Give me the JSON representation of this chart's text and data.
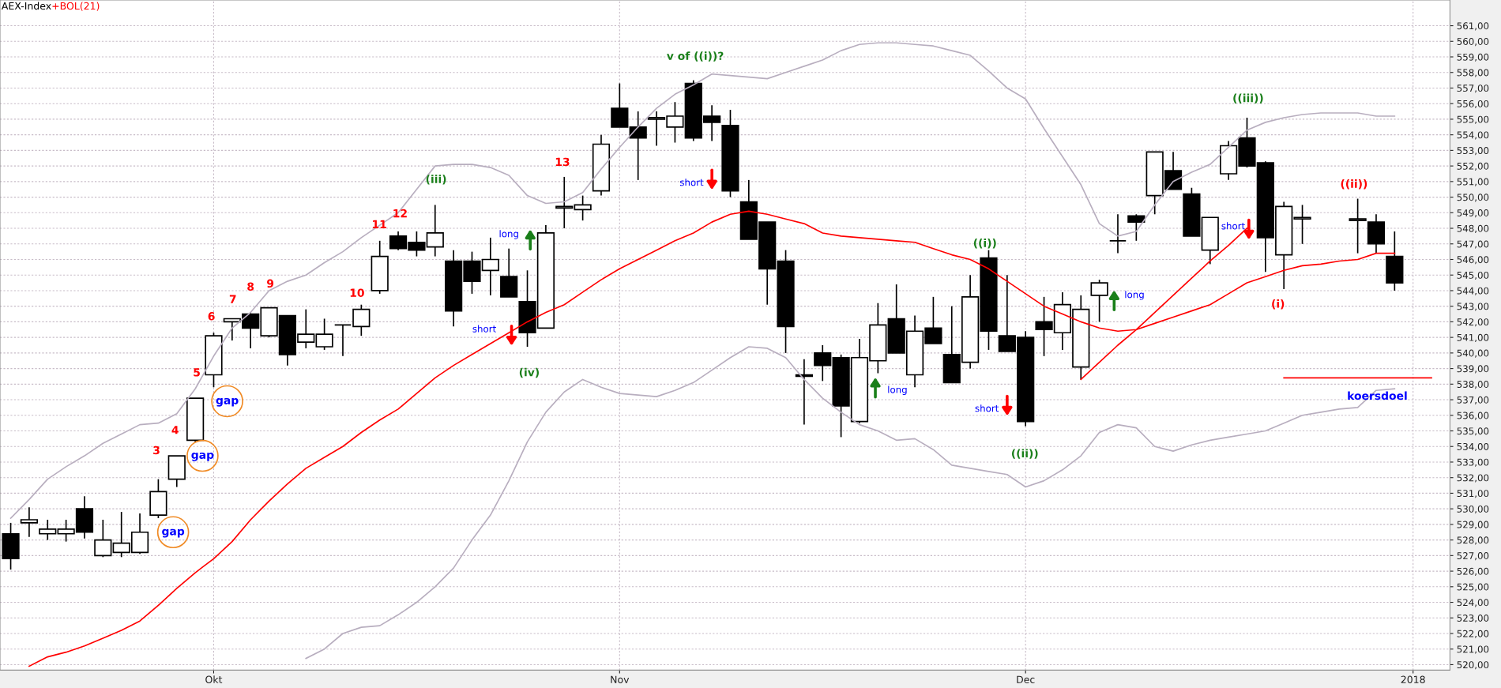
{
  "chart_data": {
    "type": "candlestick",
    "title": "AEX-Index",
    "legend": "top left",
    "grid": true,
    "categories": [
      null,
      null,
      null,
      null,
      null,
      null,
      null,
      null,
      null,
      null,
      null,
      "Okt",
      null,
      null,
      null,
      null,
      null,
      null,
      null,
      null,
      null,
      null,
      null,
      null,
      null,
      null,
      null,
      null,
      null,
      null,
      null,
      null,
      null,
      "Nov",
      null,
      null,
      null,
      null,
      null,
      null,
      null,
      null,
      null,
      null,
      null,
      null,
      null,
      null,
      null,
      null,
      null,
      null,
      null,
      null,
      null,
      "Dec",
      null,
      null,
      null,
      null,
      null,
      null,
      null,
      null,
      null,
      null,
      null,
      null,
      null,
      null,
      null,
      null,
      null,
      null,
      null,
      null,
      "2018",
      null
    ],
    "ohlc": [
      [
        528.4,
        529.1,
        526.1,
        526.8
      ],
      [
        529.1,
        530.1,
        528.2,
        529.3
      ],
      [
        528.4,
        529.3,
        528.0,
        528.7
      ],
      [
        528.4,
        529.3,
        527.9,
        528.7
      ],
      [
        530.0,
        530.8,
        528.1,
        528.5
      ],
      [
        527.0,
        529.3,
        526.9,
        528.0
      ],
      [
        527.2,
        529.8,
        526.9,
        527.8
      ],
      [
        527.2,
        529.7,
        527.1,
        528.5
      ],
      [
        529.6,
        531.9,
        529.4,
        531.1
      ],
      [
        531.9,
        533.4,
        531.4,
        533.4
      ],
      [
        534.4,
        537.1,
        534.3,
        537.1
      ],
      [
        538.6,
        541.3,
        537.8,
        541.1
      ],
      [
        542.0,
        542.2,
        540.8,
        542.2
      ],
      [
        542.5,
        542.6,
        540.3,
        541.6
      ],
      [
        541.1,
        542.9,
        541.0,
        542.9
      ],
      [
        542.4,
        542.4,
        539.2,
        539.9
      ],
      [
        540.7,
        542.8,
        540.3,
        541.2
      ],
      [
        540.4,
        542.2,
        540.2,
        541.2
      ],
      [
        541.8,
        541.8,
        539.8,
        541.8
      ],
      [
        541.7,
        543.1,
        541.1,
        542.8
      ],
      [
        544.0,
        547.2,
        543.8,
        546.2
      ],
      [
        547.5,
        547.8,
        546.6,
        546.7
      ],
      [
        547.1,
        547.8,
        546.2,
        546.6
      ],
      [
        546.8,
        549.5,
        546.2,
        547.7
      ],
      [
        545.9,
        546.6,
        541.7,
        542.7
      ],
      [
        545.9,
        546.5,
        543.8,
        544.6
      ],
      [
        545.3,
        547.4,
        543.7,
        546.0
      ],
      [
        544.9,
        546.7,
        543.6,
        543.6
      ],
      [
        543.3,
        545.3,
        540.4,
        541.3
      ],
      [
        541.6,
        548.2,
        541.6,
        547.7
      ],
      [
        549.3,
        551.3,
        548.0,
        549.4
      ],
      [
        549.2,
        550.1,
        548.5,
        549.5
      ],
      [
        550.4,
        554.0,
        550.1,
        553.4
      ],
      [
        555.7,
        557.3,
        554.5,
        554.5
      ],
      [
        554.5,
        555.5,
        551.1,
        553.8
      ],
      [
        555.0,
        555.5,
        553.3,
        555.1
      ],
      [
        554.5,
        556.1,
        553.5,
        555.2
      ],
      [
        557.3,
        557.5,
        553.6,
        553.8
      ],
      [
        555.2,
        555.9,
        553.6,
        554.8
      ],
      [
        554.6,
        555.6,
        550.0,
        550.4
      ],
      [
        549.7,
        551.1,
        547.3,
        547.3
      ],
      [
        548.4,
        548.4,
        543.1,
        545.4
      ],
      [
        545.9,
        546.6,
        540.0,
        541.7
      ],
      [
        538.6,
        539.6,
        535.4,
        538.5
      ],
      [
        540.0,
        540.5,
        538.2,
        539.2
      ],
      [
        539.7,
        539.9,
        534.6,
        536.6
      ],
      [
        535.6,
        540.9,
        535.5,
        539.7
      ],
      [
        539.5,
        543.2,
        538.7,
        541.8
      ],
      [
        542.2,
        544.4,
        540.0,
        540.0
      ],
      [
        538.6,
        542.4,
        537.8,
        541.4
      ],
      [
        541.6,
        543.6,
        540.6,
        540.6
      ],
      [
        539.9,
        543.0,
        538.1,
        538.1
      ],
      [
        539.4,
        545.0,
        539.0,
        543.6
      ],
      [
        546.1,
        546.6,
        540.2,
        541.4
      ],
      [
        541.1,
        545.0,
        540.1,
        540.1
      ],
      [
        541.0,
        541.4,
        535.3,
        535.6
      ],
      [
        542.0,
        543.6,
        539.8,
        541.5
      ],
      [
        541.3,
        543.9,
        540.2,
        543.1
      ],
      [
        539.1,
        543.7,
        538.3,
        542.8
      ],
      [
        543.7,
        544.7,
        542.0,
        544.5
      ],
      [
        547.2,
        548.9,
        546.4,
        547.2
      ],
      [
        548.8,
        548.9,
        547.2,
        548.4
      ],
      [
        550.1,
        552.9,
        548.9,
        552.9
      ],
      [
        551.7,
        552.9,
        550.5,
        550.5
      ],
      [
        550.2,
        550.6,
        547.5,
        547.5
      ],
      [
        546.6,
        548.7,
        545.7,
        548.7
      ],
      [
        551.5,
        553.6,
        551.1,
        553.3
      ],
      [
        553.8,
        555.1,
        551.9,
        552.0
      ],
      [
        552.2,
        552.3,
        545.2,
        547.4
      ],
      [
        546.3,
        549.7,
        544.1,
        549.4
      ],
      [
        548.6,
        549.5,
        547.0,
        548.7
      ],
      null,
      null,
      [
        548.5,
        549.9,
        546.4,
        548.6
      ],
      [
        548.4,
        548.9,
        546.4,
        547.0
      ],
      [
        546.2,
        547.8,
        544.0,
        544.5
      ],
      null,
      null
    ],
    "series": [
      {
        "type": "line",
        "color": "#b8aebf",
        "values": [
          529.4,
          530.6,
          531.9,
          532.7,
          533.4,
          534.2,
          534.8,
          535.4,
          535.5,
          536.1,
          537.7,
          539.8,
          541.6,
          542.6,
          544.0,
          544.6,
          545.0,
          545.8,
          546.5,
          547.4,
          548.2,
          549.0,
          550.5,
          552.0,
          552.1,
          552.1,
          551.9,
          551.4,
          550.1,
          549.6,
          549.7,
          550.3,
          551.8,
          553.2,
          554.5,
          555.7,
          556.6,
          557.2,
          557.9,
          557.8,
          557.7,
          557.6,
          558.0,
          558.4,
          558.8,
          559.4,
          559.8,
          559.9,
          559.9,
          559.8,
          559.7,
          559.4,
          559.1,
          558.1,
          557.0,
          556.3,
          554.4,
          552.6,
          550.8,
          548.3,
          547.5,
          547.8,
          549.5,
          551.0,
          551.6,
          552.1,
          553.2,
          554.3,
          554.8,
          555.1,
          555.3,
          555.4,
          555.4,
          555.4,
          555.2,
          555.2,
          null,
          null
        ]
      },
      {
        "type": "line",
        "name": "+BOL(21)",
        "color": "#ff0000",
        "values": [
          null,
          519.9,
          520.5,
          520.8,
          521.2,
          521.7,
          522.2,
          522.8,
          523.8,
          524.9,
          525.9,
          526.8,
          527.9,
          529.3,
          530.5,
          531.6,
          532.6,
          533.3,
          534.0,
          534.9,
          535.7,
          536.4,
          537.4,
          538.4,
          539.2,
          539.9,
          540.6,
          541.3,
          542.0,
          542.6,
          543.1,
          543.9,
          544.7,
          545.4,
          546.0,
          546.6,
          547.2,
          547.7,
          548.4,
          548.9,
          549.1,
          548.9,
          548.6,
          548.3,
          547.7,
          547.5,
          547.4,
          547.3,
          547.2,
          547.1,
          546.7,
          546.3,
          546.0,
          545.4,
          544.6,
          543.8,
          543.0,
          542.5,
          542.0,
          541.6,
          541.4,
          541.5,
          541.9,
          542.3,
          542.7,
          543.1,
          543.8,
          544.5,
          544.9,
          545.3,
          545.6,
          545.7,
          545.9,
          546.0,
          546.4,
          546.4,
          null,
          null
        ]
      },
      {
        "type": "line",
        "color": "#b8aebf",
        "values": [
          null,
          null,
          null,
          null,
          null,
          null,
          null,
          null,
          null,
          null,
          null,
          null,
          null,
          null,
          null,
          null,
          520.4,
          521.0,
          522.0,
          522.4,
          522.5,
          523.2,
          524.0,
          525.0,
          526.2,
          528.0,
          529.6,
          531.8,
          534.3,
          536.2,
          537.5,
          538.3,
          537.8,
          537.4,
          537.3,
          537.2,
          537.6,
          538.1,
          538.9,
          539.7,
          540.4,
          540.3,
          539.7,
          538.3,
          537.1,
          536.2,
          535.4,
          535.0,
          534.4,
          534.5,
          533.8,
          532.8,
          532.6,
          532.4,
          532.2,
          531.4,
          531.8,
          532.5,
          533.4,
          534.9,
          535.4,
          535.2,
          534.0,
          533.7,
          534.1,
          534.4,
          534.6,
          534.8,
          535.0,
          535.5,
          536.0,
          536.2,
          536.4,
          536.5,
          537.6,
          537.7,
          null,
          null
        ]
      },
      {
        "type": "line",
        "color": "#ff0000",
        "values": [
          null,
          null,
          null,
          null,
          null,
          null,
          null,
          null,
          null,
          null,
          null,
          null,
          null,
          null,
          null,
          null,
          null,
          null,
          null,
          null,
          null,
          null,
          null,
          null,
          null,
          null,
          null,
          null,
          null,
          null,
          null,
          null,
          null,
          null,
          null,
          null,
          null,
          null,
          null,
          null,
          null,
          null,
          null,
          null,
          null,
          null,
          null,
          null,
          null,
          null,
          null,
          null,
          null,
          null,
          null,
          null,
          null,
          null,
          538.3,
          539.4,
          540.5,
          541.5,
          542.6,
          543.7,
          544.8,
          545.9,
          546.9,
          548.0,
          null,
          null,
          null,
          null,
          null,
          null,
          null,
          null,
          null,
          null
        ]
      },
      {
        "type": "line",
        "color": "#ff0000",
        "values": [
          null,
          null,
          null,
          null,
          null,
          null,
          null,
          null,
          null,
          null,
          null,
          null,
          null,
          null,
          null,
          null,
          null,
          null,
          null,
          null,
          null,
          null,
          null,
          null,
          null,
          null,
          null,
          null,
          null,
          null,
          null,
          null,
          null,
          null,
          null,
          null,
          null,
          null,
          null,
          null,
          null,
          null,
          null,
          null,
          null,
          null,
          null,
          null,
          null,
          null,
          null,
          null,
          null,
          null,
          null,
          null,
          null,
          null,
          null,
          null,
          null,
          null,
          null,
          null,
          null,
          null,
          null,
          null,
          null,
          538.4,
          538.4,
          538.4,
          538.4,
          538.4,
          538.4,
          538.4,
          538.4,
          538.4
        ]
      }
    ],
    "annotations": [
      "gap",
      "gap",
      "gap",
      "3",
      "4",
      "5",
      "6",
      "7",
      "8",
      "9",
      "10",
      "11",
      "12",
      "13",
      "(iii)",
      "(iv)",
      "v of ((i))?",
      "((i))",
      "((ii))",
      "((iii))",
      "(i)",
      "((ii))",
      "long",
      "short",
      "short",
      "long",
      "short",
      "long",
      "short",
      "koersdoel"
    ],
    "ylim": [
      519.65,
      562.65
    ],
    "yticks": [
      {
        "value": 520,
        "label": "520,00"
      },
      {
        "value": 521,
        "label": "521,00"
      },
      {
        "value": 522,
        "label": "522,00"
      },
      {
        "value": 523,
        "label": "523,00"
      },
      {
        "value": 524,
        "label": "524,00"
      },
      {
        "value": 525,
        "label": "525,00"
      },
      {
        "value": 526,
        "label": "526,00"
      },
      {
        "value": 527,
        "label": "527,00"
      },
      {
        "value": 528,
        "label": "528,00"
      },
      {
        "value": 529,
        "label": "529,00"
      },
      {
        "value": 530,
        "label": "530,00"
      },
      {
        "value": 531,
        "label": "531,00"
      },
      {
        "value": 532,
        "label": "532,00"
      },
      {
        "value": 533,
        "label": "533,00"
      },
      {
        "value": 534,
        "label": "534,00"
      },
      {
        "value": 535,
        "label": "535,00"
      },
      {
        "value": 536,
        "label": "536,00"
      },
      {
        "value": 537,
        "label": "537,00"
      },
      {
        "value": 538,
        "label": "538,00"
      },
      {
        "value": 539,
        "label": "539,00"
      },
      {
        "value": 540,
        "label": "540,00"
      },
      {
        "value": 541,
        "label": "541,00"
      },
      {
        "value": 542,
        "label": "542,00"
      },
      {
        "value": 543,
        "label": "543,00"
      },
      {
        "value": 544,
        "label": "544,00"
      },
      {
        "value": 545,
        "label": "545,00"
      },
      {
        "value": 546,
        "label": "546,00"
      },
      {
        "value": 547,
        "label": "547,00"
      },
      {
        "value": 548,
        "label": "548,00"
      },
      {
        "value": 549,
        "label": "549,00"
      },
      {
        "value": 550,
        "label": "550,00"
      },
      {
        "value": 551,
        "label": "551,00"
      },
      {
        "value": 552,
        "label": "552,00"
      },
      {
        "value": 553,
        "label": "553,00"
      },
      {
        "value": 554,
        "label": "554,00"
      },
      {
        "value": 555,
        "label": "555,00"
      },
      {
        "value": 556,
        "label": "556,00"
      },
      {
        "value": 557,
        "label": "557,00"
      },
      {
        "value": 558,
        "label": "558,00"
      },
      {
        "value": 559,
        "label": "559,00"
      },
      {
        "value": 560,
        "label": "560,00"
      },
      {
        "value": 561,
        "label": "561,00"
      }
    ]
  }
}
